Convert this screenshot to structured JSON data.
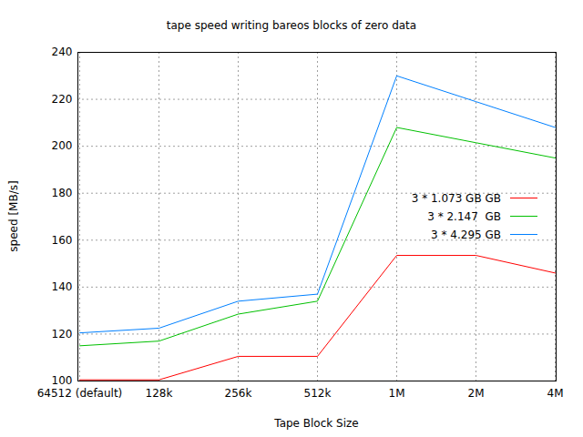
{
  "chart_data": {
    "type": "line",
    "title": "tape speed writing bareos blocks of zero data",
    "x_label": "Tape Block Size",
    "y_label": "speed [MB/s]",
    "categories": [
      "64512 (default)",
      "128k",
      "256k",
      "512k",
      "1M",
      "2M",
      "4M"
    ],
    "series": [
      {
        "name": "3 * 1.073 GB GB",
        "color": "#ff0000",
        "values": [
          100.5,
          100.5,
          110.5,
          110.5,
          153.5,
          153.5,
          146
        ]
      },
      {
        "name": "3 * 2.147  GB",
        "color": "#00c000",
        "values": [
          115,
          117,
          128.5,
          134,
          208,
          201.5,
          195
        ]
      },
      {
        "name": "3 * 4.295 GB",
        "color": "#0080ff",
        "values": [
          120.5,
          122.5,
          134,
          137,
          230,
          219,
          208
        ]
      }
    ],
    "ylim": [
      100,
      240
    ],
    "yticks": [
      100,
      120,
      140,
      160,
      180,
      200,
      220,
      240
    ],
    "grid": true,
    "legend": "right"
  }
}
